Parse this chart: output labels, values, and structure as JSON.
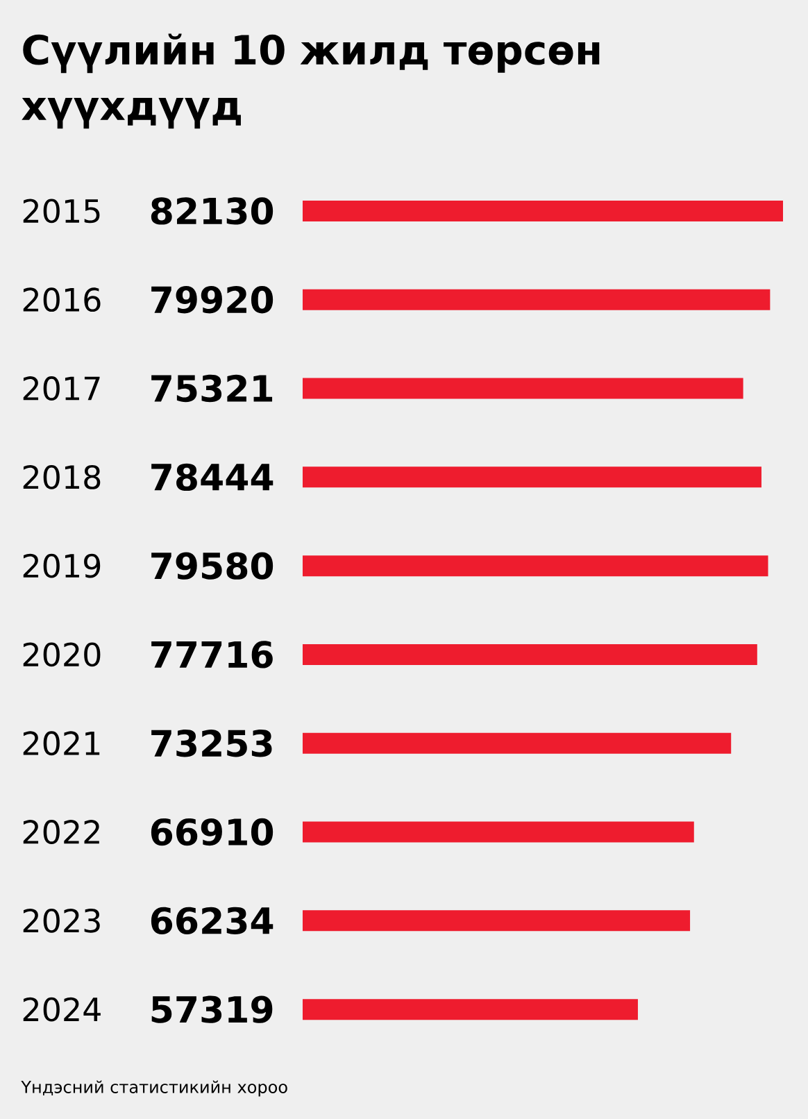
{
  "chart_data": {
    "type": "bar",
    "orientation": "horizontal",
    "title": "Сүүлийн 10 жилд төрсөн хүүхдүүд",
    "categories": [
      "2015",
      "2016",
      "2017",
      "2018",
      "2019",
      "2020",
      "2021",
      "2022",
      "2023",
      "2024"
    ],
    "values": [
      82130,
      79920,
      75321,
      78444,
      79580,
      77716,
      73253,
      66910,
      66234,
      57319
    ],
    "color": "#ee1c2e",
    "data_labels": true,
    "annotations": [
      "Үндэсний статистикийн хороо"
    ]
  }
}
